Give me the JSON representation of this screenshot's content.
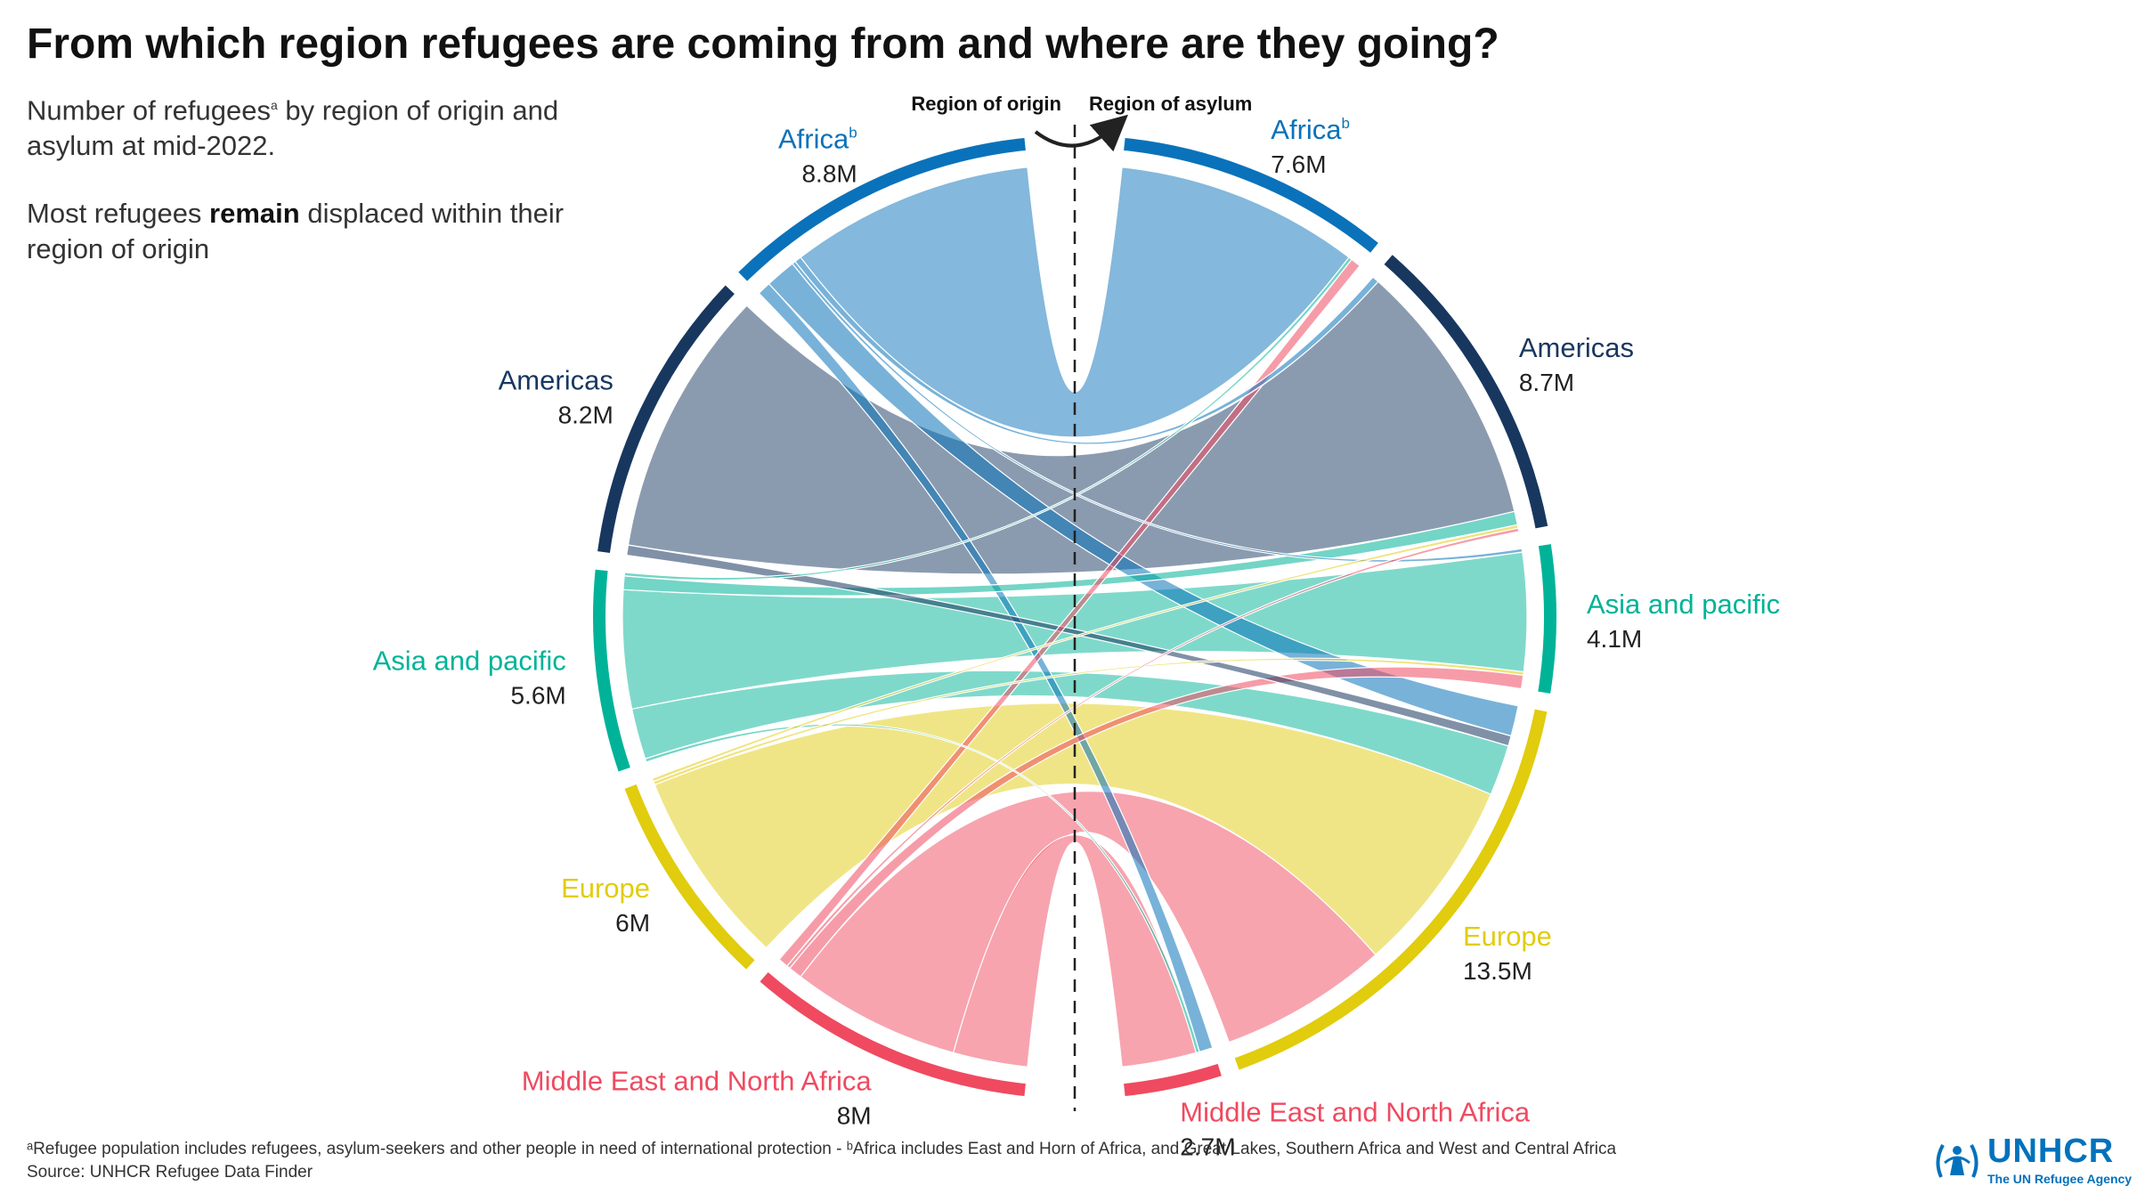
{
  "title": "From which region refugees are coming from and where are they going?",
  "subtitle": {
    "line1_pre": "Number of refugees",
    "line1_sup": "a",
    "line1_post": " by region of origin and asylum at mid-2022.",
    "line2_pre": "Most refugees ",
    "line2_bold": "remain",
    "line2_post": " displaced within their region of origin"
  },
  "direction": {
    "origin_label": "Region of origin",
    "asylum_label": "Region of asylum"
  },
  "footnote": {
    "line1": "ᵃRefugee population includes refugees, asylum-seekers and other people in need of international protection - ᵇAfrica includes  East and Horn of Africa, and Great Lakes, Southern Africa and West and Central Africa",
    "line2": "Source: UNHCR Refugee Data Finder"
  },
  "logo": {
    "name": "UNHCR",
    "tagline": "The UN Refugee Agency",
    "icon": "unhcr-laurel-people-icon",
    "color": "#0072bc"
  },
  "colors": {
    "africa": "#0a72ba",
    "americas": "#18375f",
    "asia": "#00b398",
    "europe": "#e1cc0d",
    "mena": "#ef4a60"
  },
  "chart_data": {
    "type": "chord",
    "unit": "M",
    "origin_regions": [
      {
        "key": "africa",
        "name": "Africa",
        "sup": "b",
        "value": 8.8,
        "label": "8.8M"
      },
      {
        "key": "americas",
        "name": "Americas",
        "sup": "",
        "value": 8.2,
        "label": "8.2M"
      },
      {
        "key": "asia",
        "name": "Asia and pacific",
        "sup": "",
        "value": 5.6,
        "label": "5.6M"
      },
      {
        "key": "europe",
        "name": "Europe",
        "sup": "",
        "value": 6,
        "label": "6M"
      },
      {
        "key": "mena",
        "name": "Middle East and North Africa",
        "sup": "",
        "value": 8,
        "label": "8M"
      }
    ],
    "asylum_regions": [
      {
        "key": "africa",
        "name": "Africa",
        "sup": "b",
        "value": 7.6,
        "label": "7.6M"
      },
      {
        "key": "americas",
        "name": "Americas",
        "sup": "",
        "value": 8.7,
        "label": "8.7M"
      },
      {
        "key": "asia",
        "name": "Asia and pacific",
        "sup": "",
        "value": 4.1,
        "label": "4.1M"
      },
      {
        "key": "europe",
        "name": "Europe",
        "sup": "",
        "value": 13.5,
        "label": "13.5M"
      },
      {
        "key": "mena",
        "name": "Middle East and North Africa",
        "sup": "",
        "value": 2.7,
        "label": "2.7M"
      }
    ],
    "flows": [
      {
        "from": "africa",
        "to": "africa",
        "value": 7.2
      },
      {
        "from": "africa",
        "to": "europe",
        "value": 0.9
      },
      {
        "from": "africa",
        "to": "mena",
        "value": 0.4
      },
      {
        "from": "africa",
        "to": "americas",
        "value": 0.2
      },
      {
        "from": "africa",
        "to": "asia",
        "value": 0.1
      },
      {
        "from": "americas",
        "to": "americas",
        "value": 7.9
      },
      {
        "from": "americas",
        "to": "europe",
        "value": 0.3
      },
      {
        "from": "asia",
        "to": "asia",
        "value": 3.5
      },
      {
        "from": "asia",
        "to": "europe",
        "value": 1.5
      },
      {
        "from": "asia",
        "to": "americas",
        "value": 0.4
      },
      {
        "from": "asia",
        "to": "africa",
        "value": 0.1
      },
      {
        "from": "asia",
        "to": "mena",
        "value": 0.1
      },
      {
        "from": "europe",
        "to": "europe",
        "value": 5.8
      },
      {
        "from": "europe",
        "to": "americas",
        "value": 0.1
      },
      {
        "from": "europe",
        "to": "asia",
        "value": 0.1
      },
      {
        "from": "mena",
        "to": "europe",
        "value": 5.0
      },
      {
        "from": "mena",
        "to": "mena",
        "value": 2.2
      },
      {
        "from": "mena",
        "to": "asia",
        "value": 0.4
      },
      {
        "from": "mena",
        "to": "africa",
        "value": 0.3
      },
      {
        "from": "mena",
        "to": "americas",
        "value": 0.1
      }
    ]
  }
}
